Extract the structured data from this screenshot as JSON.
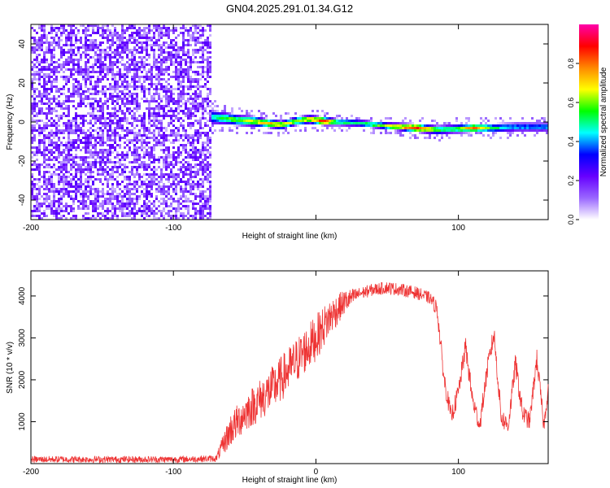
{
  "figure_title": "GN04.2025.291.01.34.G12",
  "chart_data": [
    {
      "type": "heatmap",
      "title": "GN04.2025.291.01.34.G12",
      "xlabel": "Height of straight line (km)",
      "ylabel": "Frequency (Hz)",
      "xlim": [
        -200,
        163
      ],
      "ylim": [
        -50,
        50
      ],
      "x_ticks": [
        -200,
        -100,
        0,
        100
      ],
      "x_tick_labels": [
        "-200",
        "-100",
        "",
        "100"
      ],
      "y_ticks": [
        -40,
        -20,
        0,
        20,
        40
      ],
      "y_tick_labels": [
        "-40",
        "-20",
        "0",
        "20",
        "40"
      ],
      "colorbar": {
        "label": "Normalized spectral amplitude",
        "range": [
          0,
          1
        ],
        "ticks": [
          0.0,
          0.2,
          0.4,
          0.6,
          0.8
        ],
        "tick_labels": [
          "0.0",
          "0.2",
          "0.4",
          "0.6",
          "0.8"
        ],
        "colors": [
          "#ffffff",
          "#9966ff",
          "#6600ff",
          "#0000ff",
          "#00ffff",
          "#00ff00",
          "#ffff00",
          "#ff8800",
          "#ff0000",
          "#ff00aa"
        ]
      },
      "noise_region_x": [
        -200,
        -75
      ],
      "noise_level_range": [
        0.05,
        0.25
      ],
      "ridge": {
        "x": [
          -75,
          -65,
          -55,
          -45,
          -35,
          -25,
          -15,
          -5,
          5,
          15,
          30,
          50,
          70,
          85,
          95,
          110,
          125,
          140,
          163
        ],
        "freq": [
          3,
          2.5,
          1.5,
          1,
          0,
          -1,
          1,
          2,
          1,
          0.5,
          0,
          -1.5,
          -2.5,
          -3.5,
          -3,
          -2.5,
          -2.5,
          -2,
          -2
        ],
        "amplitude": [
          0.5,
          0.6,
          0.65,
          0.7,
          0.8,
          0.75,
          0.7,
          0.75,
          0.95,
          0.6,
          0.55,
          0.7,
          0.95,
          0.6,
          0.6,
          0.85,
          0.55,
          0.45,
          0.45
        ],
        "half_width_hz": [
          4,
          3.5,
          3,
          3,
          2.5,
          2.5,
          2.5,
          2.5,
          2.5,
          2,
          2,
          2,
          2.5,
          2.5,
          2.5,
          2.5,
          2.5,
          2.5,
          2.5
        ]
      }
    },
    {
      "type": "line",
      "xlabel": "Height of straight line (km)",
      "ylabel": "SNR (10 * v/v)",
      "xlim": [
        -200,
        163
      ],
      "ylim": [
        0,
        4600
      ],
      "x_ticks": [
        -200,
        -100,
        0,
        100
      ],
      "x_tick_labels": [
        "-200",
        "-100",
        "0",
        "100"
      ],
      "y_ticks": [
        1000,
        2000,
        3000,
        4000
      ],
      "y_tick_labels": [
        "1000",
        "2000",
        "3000",
        "4000"
      ],
      "series": [
        {
          "name": "SNR",
          "color": "#ee3333",
          "x": [
            -200,
            -150,
            -100,
            -70,
            -65,
            -60,
            -50,
            -40,
            -30,
            -20,
            -10,
            0,
            10,
            20,
            30,
            40,
            50,
            60,
            70,
            80,
            85,
            90,
            95,
            100,
            105,
            110,
            115,
            120,
            125,
            130,
            135,
            140,
            145,
            150,
            155,
            160,
            163
          ],
          "y": [
            100,
            100,
            100,
            120,
            450,
            800,
            1200,
            1500,
            1800,
            2200,
            2600,
            3000,
            3500,
            3850,
            4050,
            4150,
            4200,
            4150,
            4080,
            3950,
            3700,
            2000,
            1100,
            1700,
            2800,
            1500,
            900,
            2200,
            3100,
            1100,
            900,
            2400,
            1200,
            1000,
            2500,
            900,
            1800
          ],
          "noise_amplitude": [
            80,
            80,
            80,
            80,
            250,
            400,
            450,
            500,
            550,
            550,
            550,
            550,
            450,
            300,
            150,
            150,
            150,
            150,
            150,
            150,
            200,
            250,
            200,
            250,
            250,
            250,
            200,
            250,
            250,
            250,
            200,
            250,
            250,
            200,
            250,
            200,
            200
          ]
        }
      ]
    }
  ]
}
